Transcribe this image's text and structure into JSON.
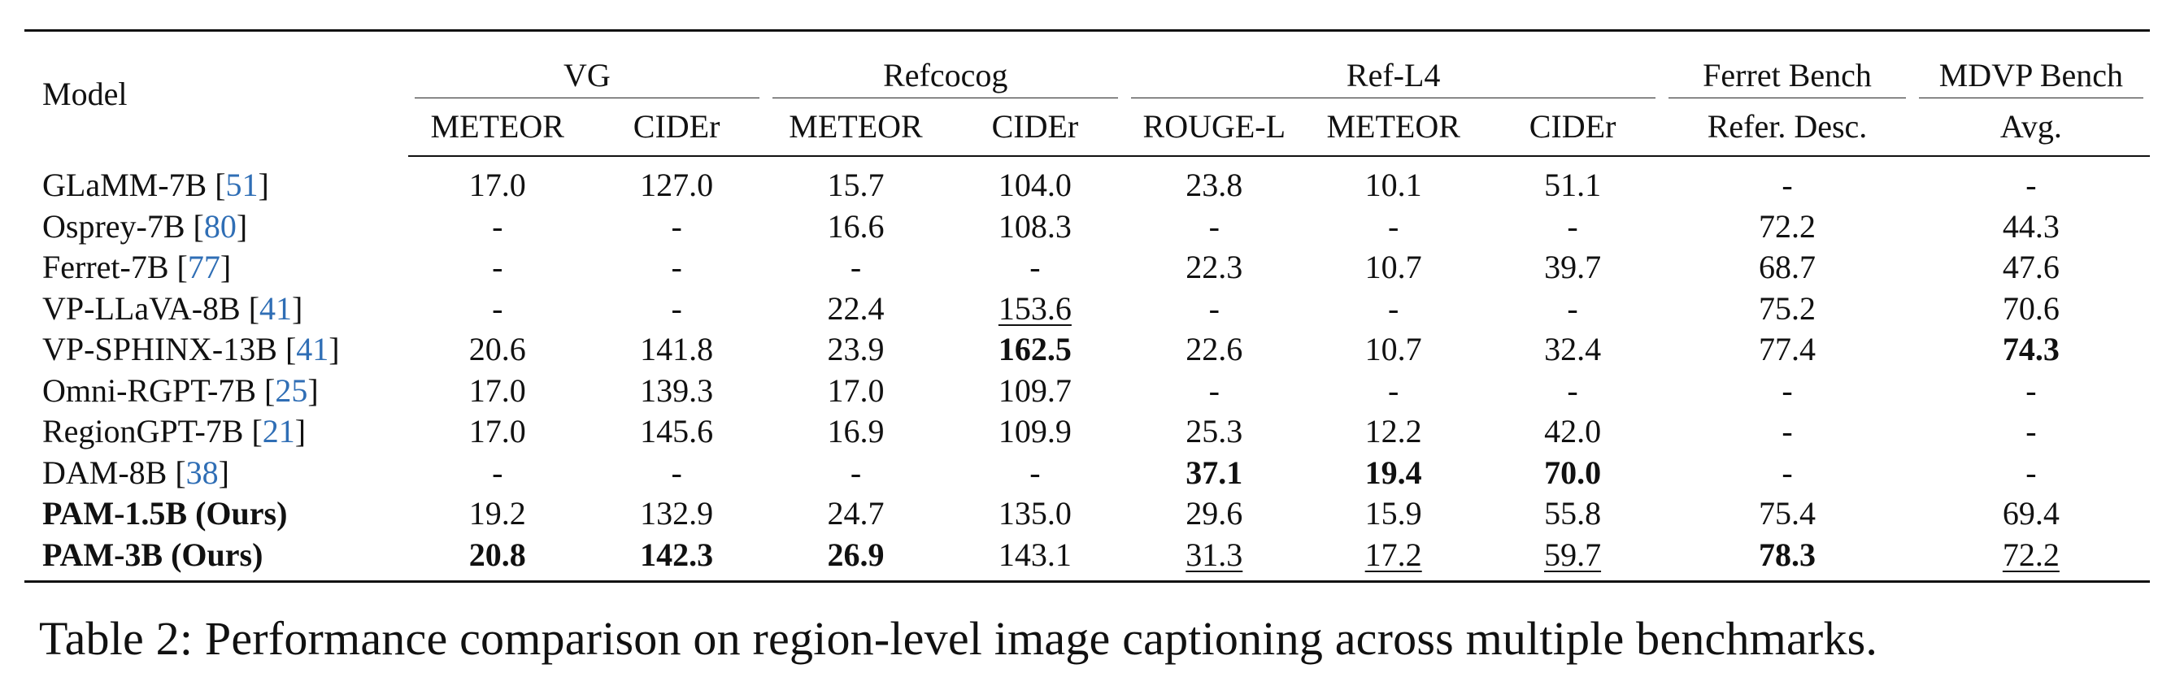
{
  "table": {
    "model_header": "Model",
    "groups": [
      {
        "name": "VG",
        "metrics": [
          "METEOR",
          "CIDEr"
        ]
      },
      {
        "name": "Refcocog",
        "metrics": [
          "METEOR",
          "CIDEr"
        ]
      },
      {
        "name": "Ref-L4",
        "metrics": [
          "ROUGE-L",
          "METEOR",
          "CIDEr"
        ]
      },
      {
        "name": "Ferret Bench",
        "metrics": [
          "Refer. Desc."
        ]
      },
      {
        "name": "MDVP Bench",
        "metrics": [
          "Avg."
        ]
      }
    ],
    "rows": [
      {
        "name": "GLaMM-7B",
        "ref": "51",
        "ours": false,
        "cells": [
          {
            "v": "17.0"
          },
          {
            "v": "127.0"
          },
          {
            "v": "15.7"
          },
          {
            "v": "104.0"
          },
          {
            "v": "23.8"
          },
          {
            "v": "10.1"
          },
          {
            "v": "51.1"
          },
          {
            "v": "-"
          },
          {
            "v": "-"
          }
        ]
      },
      {
        "name": "Osprey-7B",
        "ref": "80",
        "ours": false,
        "cells": [
          {
            "v": "-"
          },
          {
            "v": "-"
          },
          {
            "v": "16.6"
          },
          {
            "v": "108.3"
          },
          {
            "v": "-"
          },
          {
            "v": "-"
          },
          {
            "v": "-"
          },
          {
            "v": "72.2"
          },
          {
            "v": "44.3"
          }
        ]
      },
      {
        "name": "Ferret-7B",
        "ref": "77",
        "ours": false,
        "cells": [
          {
            "v": "-"
          },
          {
            "v": "-"
          },
          {
            "v": "-"
          },
          {
            "v": "-"
          },
          {
            "v": "22.3"
          },
          {
            "v": "10.7"
          },
          {
            "v": "39.7"
          },
          {
            "v": "68.7"
          },
          {
            "v": "47.6"
          }
        ]
      },
      {
        "name": "VP-LLaVA-8B",
        "ref": "41",
        "ours": false,
        "cells": [
          {
            "v": "-"
          },
          {
            "v": "-"
          },
          {
            "v": "22.4"
          },
          {
            "v": "153.6",
            "u": true
          },
          {
            "v": "-"
          },
          {
            "v": "-"
          },
          {
            "v": "-"
          },
          {
            "v": "75.2"
          },
          {
            "v": "70.6"
          }
        ]
      },
      {
        "name": "VP-SPHINX-13B",
        "ref": "41",
        "ours": false,
        "cells": [
          {
            "v": "20.6"
          },
          {
            "v": "141.8"
          },
          {
            "v": "23.9"
          },
          {
            "v": "162.5",
            "b": true
          },
          {
            "v": "22.6"
          },
          {
            "v": "10.7"
          },
          {
            "v": "32.4"
          },
          {
            "v": "77.4"
          },
          {
            "v": "74.3",
            "b": true
          }
        ]
      },
      {
        "name": "Omni-RGPT-7B",
        "ref": "25",
        "ours": false,
        "cells": [
          {
            "v": "17.0"
          },
          {
            "v": "139.3"
          },
          {
            "v": "17.0"
          },
          {
            "v": "109.7"
          },
          {
            "v": "-"
          },
          {
            "v": "-"
          },
          {
            "v": "-"
          },
          {
            "v": "-"
          },
          {
            "v": "-"
          }
        ]
      },
      {
        "name": "RegionGPT-7B",
        "ref": "21",
        "ours": false,
        "cells": [
          {
            "v": "17.0"
          },
          {
            "v": "145.6"
          },
          {
            "v": "16.9"
          },
          {
            "v": "109.9"
          },
          {
            "v": "25.3"
          },
          {
            "v": "12.2"
          },
          {
            "v": "42.0"
          },
          {
            "v": "-"
          },
          {
            "v": "-"
          }
        ]
      },
      {
        "name": "DAM-8B",
        "ref": "38",
        "ours": false,
        "cells": [
          {
            "v": "-"
          },
          {
            "v": "-"
          },
          {
            "v": "-"
          },
          {
            "v": "-"
          },
          {
            "v": "37.1",
            "b": true
          },
          {
            "v": "19.4",
            "b": true
          },
          {
            "v": "70.0",
            "b": true
          },
          {
            "v": "-"
          },
          {
            "v": "-"
          }
        ]
      },
      {
        "name": "PAM-1.5B (Ours)",
        "ref": "",
        "ours": true,
        "cells": [
          {
            "v": "19.2"
          },
          {
            "v": "132.9"
          },
          {
            "v": "24.7"
          },
          {
            "v": "135.0"
          },
          {
            "v": "29.6"
          },
          {
            "v": "15.9"
          },
          {
            "v": "55.8"
          },
          {
            "v": "75.4"
          },
          {
            "v": "69.4"
          }
        ]
      },
      {
        "name": "PAM-3B (Ours)",
        "ref": "",
        "ours": true,
        "cells": [
          {
            "v": "20.8",
            "b": true
          },
          {
            "v": "142.3",
            "b": true
          },
          {
            "v": "26.9",
            "b": true
          },
          {
            "v": "143.1"
          },
          {
            "v": "31.3",
            "u": true
          },
          {
            "v": "17.2",
            "u": true
          },
          {
            "v": "59.7",
            "u": true
          },
          {
            "v": "78.3",
            "b": true
          },
          {
            "v": "72.2",
            "u": true
          }
        ]
      }
    ]
  },
  "caption": "Table 2: Performance comparison on region-level image captioning across multiple benchmarks.",
  "colors": {
    "citation": "#2f6eb5",
    "text": "#111111"
  }
}
